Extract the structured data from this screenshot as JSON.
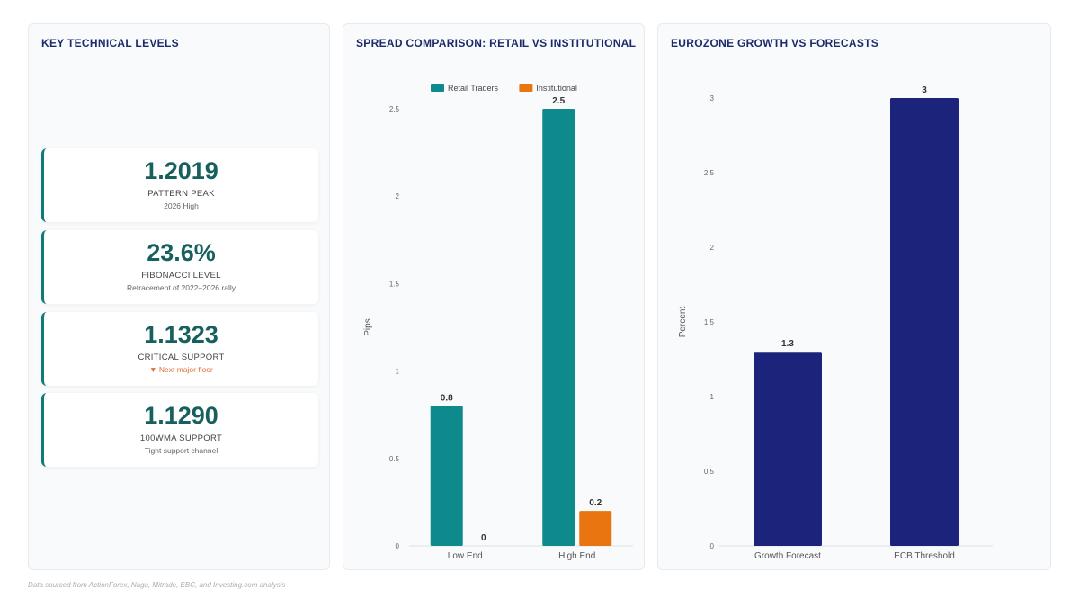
{
  "levels_panel": {
    "title": "KEY TECHNICAL LEVELS",
    "cards": [
      {
        "value": "1.2019",
        "label": "PATTERN PEAK",
        "sub": "2026 High"
      },
      {
        "value": "23.6%",
        "label": "FIBONACCI LEVEL",
        "sub": "Retracement of 2022–2026 rally"
      },
      {
        "value": "1.1323",
        "label": "CRITICAL SUPPORT",
        "sub": "▼ Next major floor"
      },
      {
        "value": "1.1290",
        "label": "100WMA SUPPORT",
        "sub": "Tight support channel"
      }
    ]
  },
  "footer": {
    "text": "Data sourced from ActionForex, Naga, Mitrade, EBC, and Investing.com analysis"
  },
  "chart_data": [
    {
      "type": "bar",
      "title": "SPREAD COMPARISON: RETAIL VS INSTITUTIONAL",
      "categories": [
        "Low End",
        "High End"
      ],
      "series": [
        {
          "name": "Retail Traders",
          "values": [
            0.8,
            2.5
          ],
          "color": "#0e8a8c"
        },
        {
          "name": "Institutional",
          "values": [
            0,
            0.2
          ],
          "color": "#e8750f"
        }
      ],
      "xlabel": "",
      "ylabel": "Pips",
      "ylim": [
        0,
        2.5
      ],
      "yticks": [
        "0",
        "0.5",
        "1",
        "1.5",
        "2",
        "2.5"
      ],
      "legend": "top-center",
      "grid": false
    },
    {
      "type": "bar",
      "title": "EUROZONE GROWTH VS FORECASTS",
      "categories": [
        "Growth Forecast",
        "ECB Threshold"
      ],
      "series": [
        {
          "values": [
            1.3,
            3
          ],
          "color": "#1b237a"
        }
      ],
      "xlabel": "",
      "ylabel": "Percent",
      "ylim": [
        0,
        3
      ],
      "yticks": [
        "0",
        "0.5",
        "1",
        "1.5",
        "2",
        "2.5",
        "3"
      ],
      "legend": "none",
      "grid": false
    }
  ]
}
